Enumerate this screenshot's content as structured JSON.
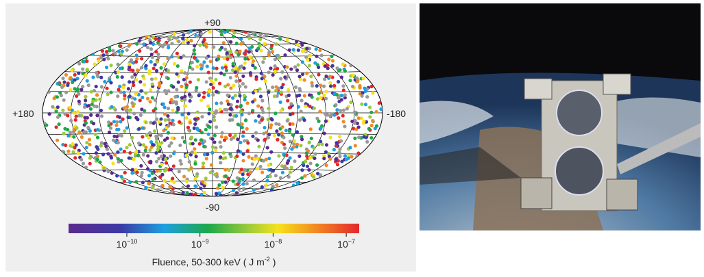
{
  "figure": {
    "sky_map": {
      "top_label": "+90",
      "bottom_label": "-90",
      "left_label": "+180",
      "right_label": "-180"
    },
    "colorbar": {
      "ticks": [
        {
          "base": "10",
          "exponent": "−10"
        },
        {
          "base": "10",
          "exponent": "−9"
        },
        {
          "base": "10",
          "exponent": "−8"
        },
        {
          "base": "10",
          "exponent": "−7"
        }
      ],
      "caption": {
        "text": "Fluence, 50-300 keV ( J m",
        "exponent": "-2",
        "tail": " )"
      }
    }
  }
}
